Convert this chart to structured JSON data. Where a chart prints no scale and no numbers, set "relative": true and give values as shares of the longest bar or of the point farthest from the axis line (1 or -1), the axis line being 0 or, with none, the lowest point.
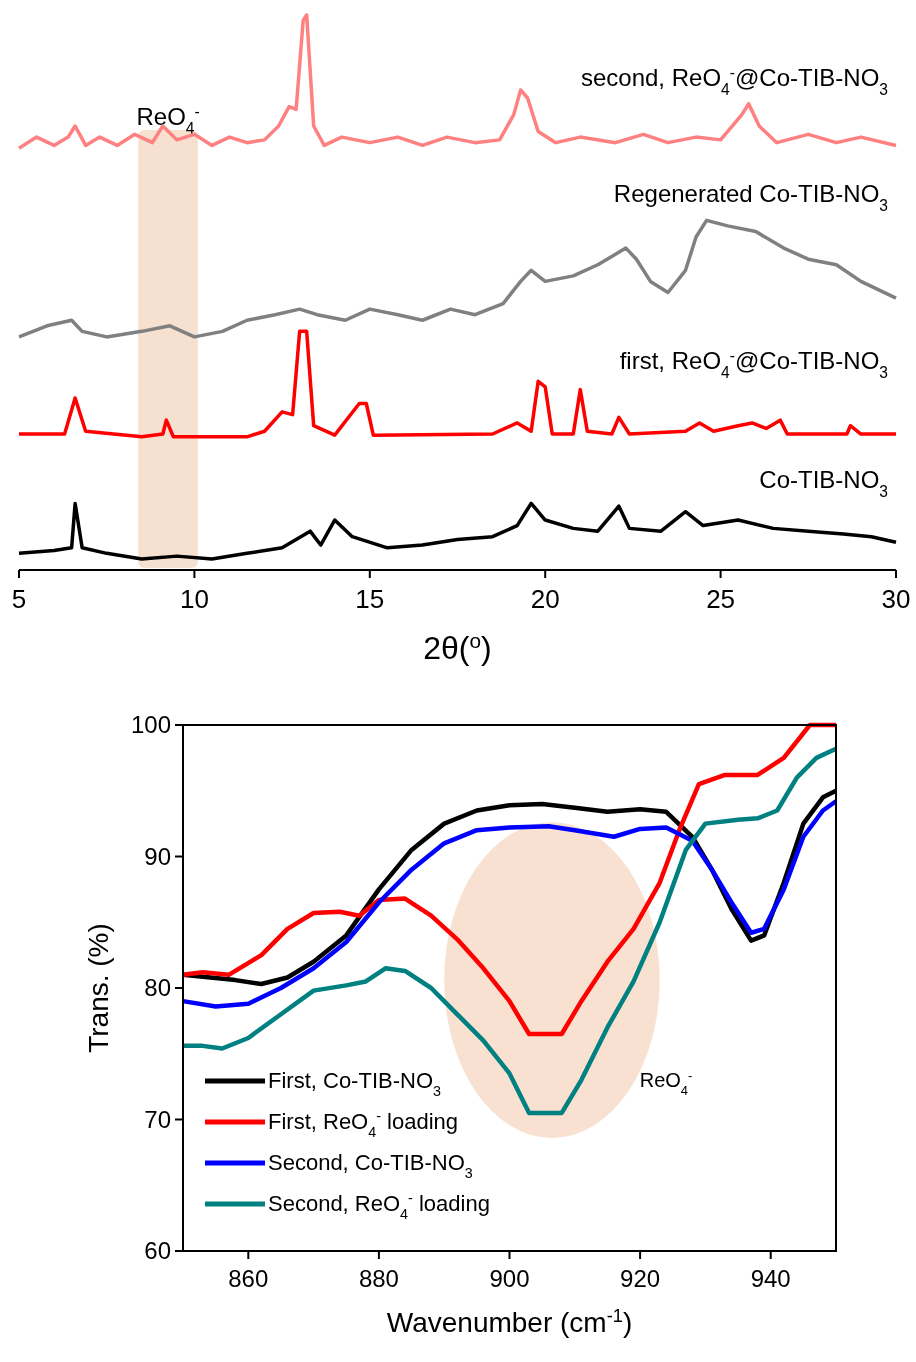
{
  "chart_data": [
    {
      "type": "line",
      "relative": true,
      "xlabel": "2θ($^{o}$)",
      "xlim": [
        5,
        30
      ],
      "xticks": [
        5,
        10,
        15,
        20,
        25,
        30
      ],
      "bands": [
        {
          "axis": "x",
          "from": 8.4,
          "to": 10.1,
          "label": "ReO$_{4}$$^{-}$",
          "color": "#f5dcc8"
        }
      ],
      "series": [
        {
          "name": "second, ReO$_{4}$$^{-}$@Co-TIB-NO$_{3}$",
          "color": "#ff8080",
          "x": [
            5.0,
            5.5,
            6.0,
            6.4,
            6.6,
            6.9,
            7.3,
            7.8,
            8.3,
            8.8,
            9.1,
            9.5,
            10.0,
            10.5,
            11.0,
            11.5,
            12.0,
            12.4,
            12.7,
            12.9,
            13.1,
            13.2,
            13.4,
            13.7,
            14.2,
            15.0,
            15.8,
            16.5,
            17.2,
            18.0,
            18.7,
            19.1,
            19.3,
            19.5,
            19.8,
            20.3,
            21.0,
            22.0,
            22.8,
            23.5,
            24.3,
            25.0,
            25.6,
            25.8,
            26.1,
            26.6,
            27.5,
            28.3,
            29.0,
            30.0
          ],
          "values": [
            0.76,
            0.78,
            0.765,
            0.78,
            0.8,
            0.765,
            0.78,
            0.765,
            0.785,
            0.77,
            0.8,
            0.775,
            0.785,
            0.765,
            0.78,
            0.77,
            0.775,
            0.8,
            0.835,
            0.83,
            0.99,
            1.0,
            0.8,
            0.765,
            0.78,
            0.77,
            0.78,
            0.765,
            0.78,
            0.77,
            0.775,
            0.82,
            0.865,
            0.85,
            0.79,
            0.77,
            0.78,
            0.77,
            0.785,
            0.77,
            0.78,
            0.775,
            0.82,
            0.84,
            0.8,
            0.77,
            0.785,
            0.77,
            0.78,
            0.765
          ]
        },
        {
          "name": "Regenerated Co-TIB-NO$_{3}$",
          "color": "#808080",
          "x": [
            5.0,
            5.8,
            6.5,
            6.8,
            7.5,
            8.5,
            9.3,
            10.0,
            10.8,
            11.5,
            12.3,
            13.0,
            13.5,
            14.3,
            15.0,
            15.8,
            16.5,
            17.3,
            18.0,
            18.8,
            19.3,
            19.6,
            20.0,
            20.8,
            21.5,
            22.3,
            22.6,
            23.0,
            23.5,
            24.0,
            24.3,
            24.6,
            25.2,
            26.0,
            26.8,
            27.5,
            28.3,
            29.0,
            30.0
          ],
          "values": [
            0.42,
            0.44,
            0.45,
            0.43,
            0.42,
            0.43,
            0.44,
            0.42,
            0.43,
            0.45,
            0.46,
            0.47,
            0.46,
            0.45,
            0.47,
            0.46,
            0.45,
            0.47,
            0.46,
            0.48,
            0.52,
            0.54,
            0.52,
            0.53,
            0.55,
            0.58,
            0.56,
            0.52,
            0.5,
            0.54,
            0.6,
            0.63,
            0.62,
            0.61,
            0.58,
            0.56,
            0.55,
            0.52,
            0.49
          ]
        },
        {
          "name": "first, ReO$_{4}$$^{-}$@Co-TIB-NO$_{3}$",
          "color": "#ff0000",
          "x": [
            5.0,
            6.3,
            6.6,
            6.9,
            8.5,
            9.1,
            9.2,
            9.4,
            11.5,
            12.0,
            12.5,
            12.8,
            13.0,
            13.2,
            13.4,
            14.0,
            14.7,
            14.9,
            15.1,
            18.5,
            19.2,
            19.6,
            19.8,
            20.0,
            20.2,
            20.8,
            21.0,
            21.2,
            21.9,
            22.1,
            22.4,
            24.0,
            24.4,
            24.8,
            25.5,
            25.9,
            26.3,
            26.7,
            26.9,
            28.6,
            28.7,
            29.0,
            30.0
          ],
          "values": [
            0.245,
            0.245,
            0.31,
            0.25,
            0.24,
            0.245,
            0.27,
            0.24,
            0.24,
            0.25,
            0.285,
            0.28,
            0.43,
            0.43,
            0.26,
            0.243,
            0.3,
            0.3,
            0.243,
            0.245,
            0.265,
            0.25,
            0.34,
            0.33,
            0.245,
            0.245,
            0.325,
            0.25,
            0.245,
            0.275,
            0.245,
            0.25,
            0.265,
            0.25,
            0.26,
            0.265,
            0.255,
            0.27,
            0.245,
            0.245,
            0.26,
            0.245,
            0.245
          ]
        },
        {
          "name": "Co-TIB-NO$_{3}$",
          "color": "#000000",
          "x": [
            5.0,
            6.0,
            6.5,
            6.6,
            6.8,
            7.5,
            8.5,
            9.5,
            10.5,
            11.5,
            12.5,
            13.3,
            13.6,
            14.0,
            14.5,
            15.5,
            16.5,
            17.5,
            18.5,
            19.2,
            19.6,
            20.0,
            20.8,
            21.5,
            22.1,
            22.4,
            23.3,
            24.0,
            24.5,
            25.5,
            26.5,
            27.5,
            28.5,
            29.3,
            30.0
          ],
          "values": [
            0.03,
            0.035,
            0.04,
            0.12,
            0.04,
            0.03,
            0.02,
            0.025,
            0.02,
            0.03,
            0.04,
            0.07,
            0.045,
            0.09,
            0.06,
            0.04,
            0.045,
            0.055,
            0.06,
            0.08,
            0.12,
            0.09,
            0.075,
            0.07,
            0.115,
            0.075,
            0.07,
            0.105,
            0.08,
            0.09,
            0.075,
            0.07,
            0.065,
            0.06,
            0.05
          ]
        }
      ]
    },
    {
      "type": "line",
      "xlabel": "Wavenumber (cm$^{-1}$)",
      "ylabel": "Trans. (%)",
      "xlim": [
        850,
        950
      ],
      "ylim": [
        60,
        100
      ],
      "xticks": [
        860,
        880,
        900,
        920,
        940
      ],
      "yticks": [
        60,
        70,
        80,
        90,
        100
      ],
      "legend": "bottom left",
      "bands": [
        {
          "axis": "x",
          "from": 890,
          "to": 923,
          "label": "ReO$_{4}$$^{-}$",
          "color": "#f7dcc8"
        }
      ],
      "series": [
        {
          "name": "First, Co-TIB-NO$_{3}$",
          "color": "#000000",
          "x": [
            850,
            858,
            862,
            866,
            870,
            875,
            880,
            885,
            890,
            895,
            900,
            905,
            910,
            915,
            920,
            924,
            928,
            931,
            934,
            937,
            939,
            942,
            945,
            948,
            950
          ],
          "values": [
            81,
            80.6,
            80.3,
            80.8,
            82,
            84,
            87.5,
            90.5,
            92.5,
            93.5,
            93.9,
            94,
            93.7,
            93.4,
            93.6,
            93.4,
            91.5,
            89,
            86,
            83.6,
            84,
            88,
            92.5,
            94.5,
            95
          ]
        },
        {
          "name": "First, ReO$_{4}$$^{-}$ loading",
          "color": "#ff0000",
          "x": [
            850,
            853,
            857,
            862,
            866,
            870,
            874,
            877,
            880,
            884,
            888,
            892,
            896,
            900,
            903,
            908,
            911,
            915,
            919,
            923,
            926,
            929,
            933,
            938,
            942,
            946,
            950
          ],
          "values": [
            81,
            81.2,
            81,
            82.5,
            84.5,
            85.7,
            85.8,
            85.5,
            86.7,
            86.8,
            85.5,
            83.7,
            81.5,
            79,
            76.5,
            76.5,
            79,
            82,
            84.5,
            88,
            92,
            95.5,
            96.2,
            96.2,
            97.5,
            100,
            100
          ]
        },
        {
          "name": "Second, Co-TIB-NO$_{3}$",
          "color": "#0000ff",
          "x": [
            850,
            855,
            860,
            865,
            870,
            875,
            880,
            885,
            890,
            895,
            900,
            906,
            910,
            916,
            920,
            924,
            928,
            931,
            934,
            937,
            939,
            942,
            945,
            948,
            950
          ],
          "values": [
            79,
            78.6,
            78.8,
            80,
            81.5,
            83.5,
            86.5,
            89,
            91,
            92,
            92.2,
            92.3,
            92,
            91.5,
            92.1,
            92.2,
            91.2,
            89,
            86.5,
            84.2,
            84.5,
            87.5,
            91.5,
            93.5,
            94.2
          ]
        },
        {
          "name": "Second, ReO$_{4}$$^{-}$ loading",
          "color": "#008080",
          "x": [
            850,
            853,
            856,
            860,
            865,
            870,
            875,
            878,
            881,
            884,
            888,
            892,
            896,
            900,
            903,
            908,
            911,
            915,
            919,
            923,
            927,
            930,
            935,
            938,
            941,
            944,
            947,
            950
          ],
          "values": [
            75.6,
            75.6,
            75.4,
            76.2,
            78,
            79.8,
            80.2,
            80.5,
            81.5,
            81.3,
            80,
            78,
            76,
            73.5,
            70.5,
            70.5,
            73,
            77,
            80.5,
            85,
            90.5,
            92.5,
            92.8,
            92.9,
            93.5,
            96,
            97.5,
            98.2
          ]
        }
      ]
    }
  ]
}
